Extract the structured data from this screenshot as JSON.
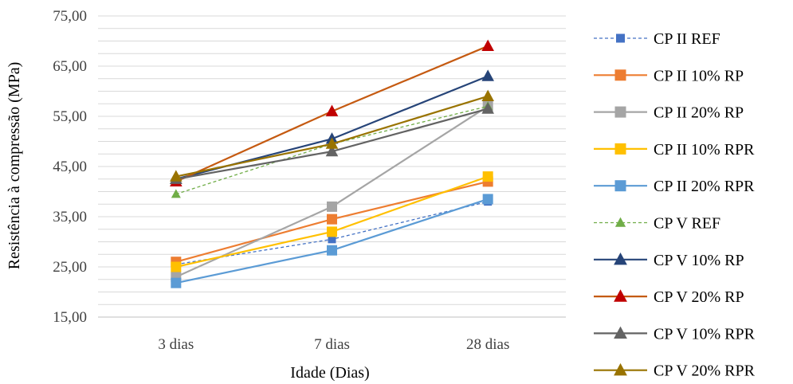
{
  "chart_data": {
    "type": "line",
    "categories": [
      "3 dias",
      "7 dias",
      "28 dias"
    ],
    "xlabel": "Idade (Dias)",
    "ylabel": "Resistência à compressão (MPa)",
    "ylim": [
      15,
      75
    ],
    "yticks": [
      15,
      25,
      35,
      45,
      55,
      65,
      75
    ],
    "ytick_labels": [
      "15,00",
      "25,00",
      "35,00",
      "45,00",
      "55,00",
      "65,00",
      "75,00"
    ],
    "minor_grid_step": 2.5,
    "grid": true,
    "legend_position": "right",
    "series": [
      {
        "name": "CP II REF",
        "values": [
          25.5,
          30.5,
          38.0
        ],
        "color": "#4472c4",
        "marker": "square",
        "dashed": true
      },
      {
        "name": "CP II 10% RP",
        "values": [
          26.0,
          34.5,
          42.0
        ],
        "color": "#ed7d31",
        "marker": "square",
        "dashed": false
      },
      {
        "name": "CP II 20% RP",
        "values": [
          23.0,
          37.0,
          57.0
        ],
        "color": "#a5a5a5",
        "marker": "square",
        "dashed": false
      },
      {
        "name": "CP II 10% RPR",
        "values": [
          25.0,
          32.0,
          43.0
        ],
        "color": "#ffc000",
        "marker": "square",
        "dashed": false
      },
      {
        "name": "CP II 20% RPR",
        "values": [
          21.8,
          28.3,
          38.5
        ],
        "color": "#5b9bd5",
        "marker": "square",
        "dashed": false
      },
      {
        "name": "CP V REF",
        "values": [
          39.5,
          49.5,
          57.0
        ],
        "color": "#70ad47",
        "marker": "triangle",
        "dashed": true
      },
      {
        "name": "CP V 10% RP",
        "values": [
          42.5,
          50.5,
          63.0
        ],
        "color": "#264478",
        "marker": "triangle",
        "dashed": false
      },
      {
        "name": "CP V 20% RP",
        "values": [
          42.0,
          56.0,
          69.0
        ],
        "color": "#c55a11",
        "marker": "triangle",
        "dashed": false,
        "marker_fill": "#c00000"
      },
      {
        "name": "CP V 10% RPR",
        "values": [
          42.5,
          48.0,
          56.5
        ],
        "color": "#636363",
        "marker": "triangle",
        "dashed": false
      },
      {
        "name": "CP V 20% RPR",
        "values": [
          43.0,
          49.5,
          59.0
        ],
        "color": "#997300",
        "marker": "triangle",
        "dashed": false
      }
    ]
  }
}
